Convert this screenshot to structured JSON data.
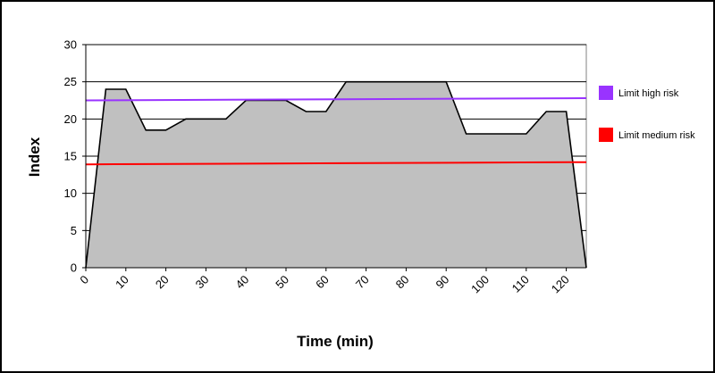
{
  "chart_data": {
    "type": "area",
    "title": "",
    "xlabel": "Time (min)",
    "ylabel": "Index",
    "xlim": [
      0,
      125
    ],
    "ylim": [
      0,
      30
    ],
    "x_ticks": [
      0,
      10,
      20,
      30,
      40,
      50,
      60,
      70,
      80,
      90,
      100,
      110,
      120
    ],
    "y_ticks": [
      0,
      5,
      10,
      15,
      20,
      25,
      30
    ],
    "grid": true,
    "legend_position": "right",
    "series": [
      {
        "type": "area",
        "fill_color": "#c0c0c0",
        "line_color": "#000000",
        "points": [
          [
            0,
            0
          ],
          [
            5,
            24
          ],
          [
            10,
            24
          ],
          [
            15,
            18.5
          ],
          [
            20,
            18.5
          ],
          [
            25,
            20
          ],
          [
            30,
            20
          ],
          [
            35,
            20
          ],
          [
            40,
            22.5
          ],
          [
            45,
            22.5
          ],
          [
            50,
            22.5
          ],
          [
            55,
            21
          ],
          [
            60,
            21
          ],
          [
            65,
            25
          ],
          [
            70,
            25
          ],
          [
            75,
            25
          ],
          [
            80,
            25
          ],
          [
            85,
            25
          ],
          [
            90,
            25
          ],
          [
            95,
            18
          ],
          [
            100,
            18
          ],
          [
            105,
            18
          ],
          [
            110,
            18
          ],
          [
            115,
            21
          ],
          [
            120,
            21
          ],
          [
            125,
            0
          ]
        ]
      },
      {
        "name": "Limit high risk",
        "type": "line",
        "color": "#9933ff",
        "points": [
          [
            0,
            22.5
          ],
          [
            125,
            22.8
          ]
        ]
      },
      {
        "name": "Limit medium risk",
        "type": "line",
        "color": "#ff0000",
        "points": [
          [
            0,
            13.9
          ],
          [
            125,
            14.2
          ]
        ]
      }
    ]
  }
}
